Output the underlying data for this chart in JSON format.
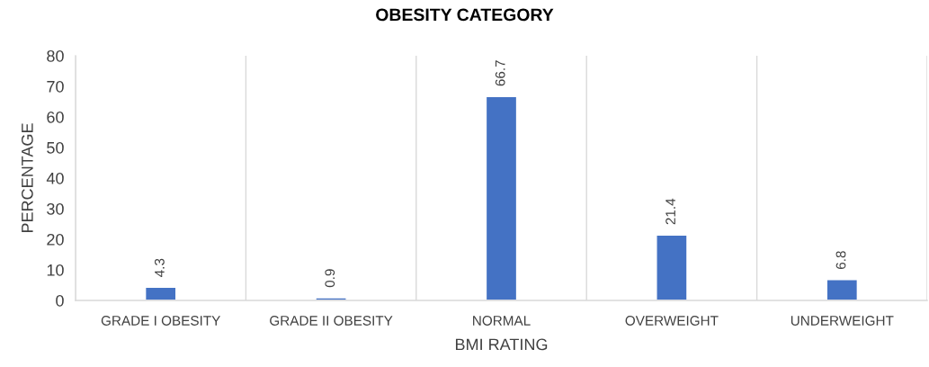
{
  "chart_data": {
    "type": "bar",
    "title": "OBESITY CATEGORY",
    "xlabel": "BMI RATING",
    "ylabel": "PERCENTAGE",
    "categories": [
      "GRADE I OBESITY",
      "GRADE II OBESITY",
      "NORMAL",
      "OVERWEIGHT",
      "UNDERWEIGHT"
    ],
    "values": [
      4.3,
      0.9,
      66.7,
      21.4,
      6.8
    ],
    "color": "#4472c4",
    "ylim": [
      0,
      80
    ],
    "yticks": [
      0,
      10,
      20,
      30,
      40,
      50,
      60,
      70,
      80
    ],
    "grid": "x",
    "data_labels": true
  }
}
